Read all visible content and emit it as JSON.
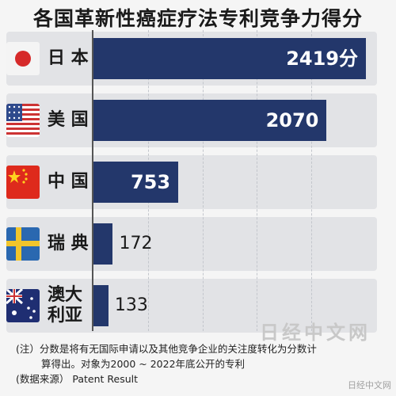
{
  "chart_data": {
    "type": "bar",
    "orientation": "horizontal",
    "title": "各国革新性癌症疗法专利竞争力得分",
    "categories": [
      "日 本",
      "美 国",
      "中 国",
      "瑞 典",
      "澳大利亚"
    ],
    "category_lines": [
      [
        "日 本"
      ],
      [
        "美 国"
      ],
      [
        "中 国"
      ],
      [
        "瑞 典"
      ],
      [
        "澳大",
        "利亚"
      ]
    ],
    "values": [
      2419,
      2070,
      753,
      172,
      133
    ],
    "value_labels": [
      "2419分",
      "2070",
      "753",
      "172",
      "133"
    ],
    "xlim": [
      0,
      2419
    ],
    "grid": true,
    "bar_color": "#23376b"
  },
  "notes": {
    "line1": "(注）分数是将有无国际申请以及其他竞争企业的关注度转化为分数计",
    "line2": "算得出。对象为2000 ~ 2022年底公开的专利",
    "line3": "(数据来源） Patent Result"
  },
  "watermark": "日经中文网",
  "source_mark": "日经中文网",
  "flag_icons": [
    "japan-flag-icon",
    "usa-flag-icon",
    "china-flag-icon",
    "sweden-flag-icon",
    "australia-flag-icon"
  ]
}
